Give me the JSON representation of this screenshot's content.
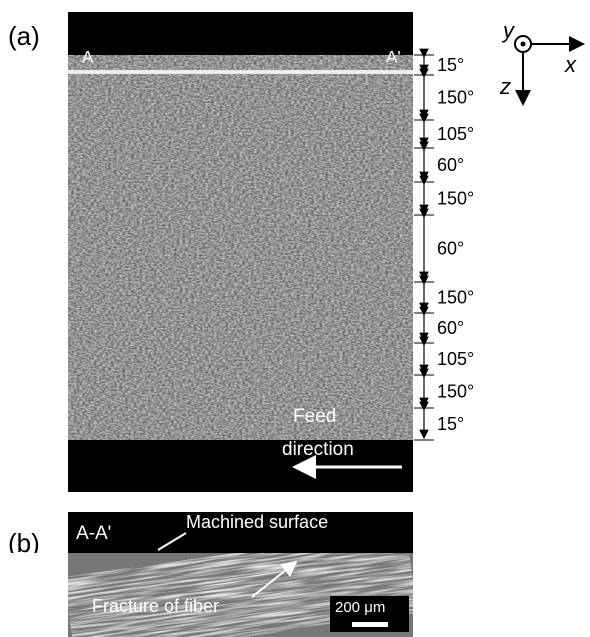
{
  "panel_a": {
    "label": "(a)",
    "section_start": "A",
    "section_end": "A'",
    "layers": [
      "15°",
      "150°",
      "105°",
      "60°",
      "150°",
      "60°",
      "150°",
      "60°",
      "105°",
      "150°",
      "15°"
    ],
    "feed_direction": [
      "Feed",
      "direction"
    ],
    "axes": {
      "y": "y",
      "x": "x",
      "z": "z"
    }
  },
  "panel_b": {
    "label": "(b)",
    "section": "A-A'",
    "machined_surface": "Machined surface",
    "fracture": "Fracture of fiber",
    "scale_bar": "200 μm"
  }
}
